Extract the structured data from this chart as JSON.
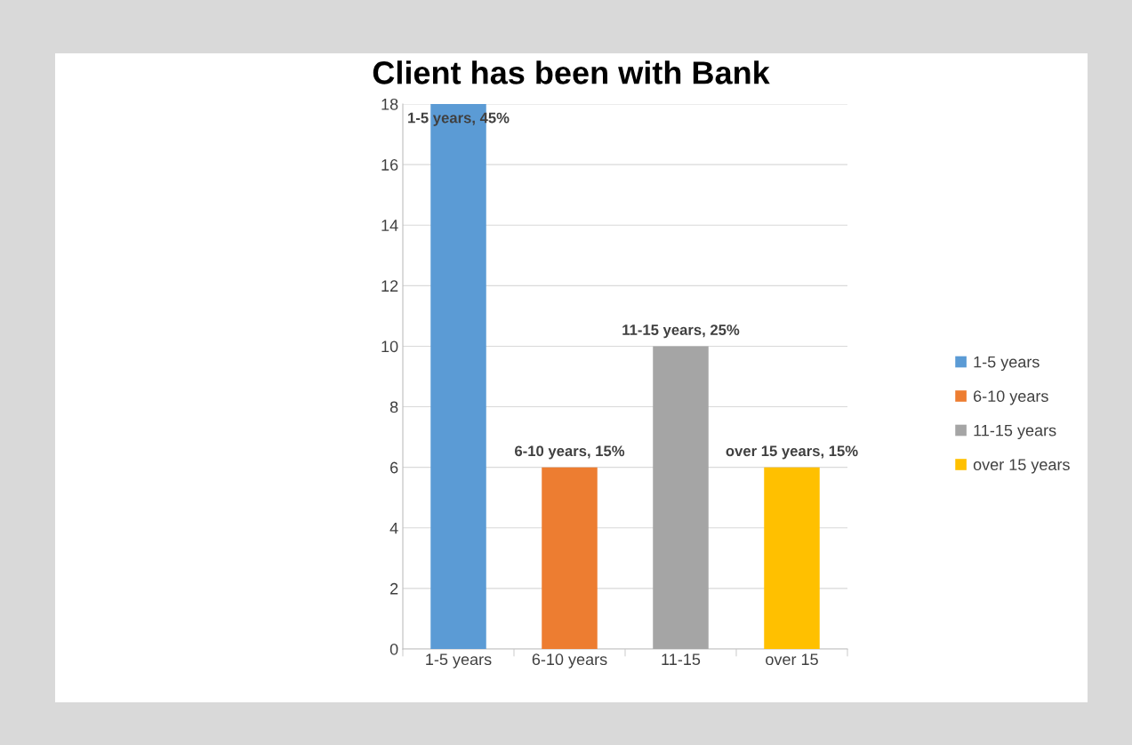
{
  "chart_data": {
    "type": "bar",
    "title": "Client has been with Bank",
    "categories": [
      "1-5 years",
      "6-10 years",
      "11-15",
      "over 15"
    ],
    "series": [
      {
        "name": "1-5 years",
        "color": "#5b9bd5",
        "values": [
          18,
          null,
          null,
          null
        ]
      },
      {
        "name": "6-10 years",
        "color": "#ed7d31",
        "values": [
          null,
          6,
          null,
          null
        ]
      },
      {
        "name": "11-15 years",
        "color": "#a5a5a5",
        "values": [
          null,
          null,
          10,
          null
        ]
      },
      {
        "name": "over 15 years",
        "color": "#ffc000",
        "values": [
          null,
          null,
          null,
          6
        ]
      }
    ],
    "annotations": [
      {
        "text": "1-5 years, 45%",
        "x": "1-5 years",
        "y": 18
      },
      {
        "text": "6-10 years, 15%",
        "x": "6-10 years",
        "y": 6
      },
      {
        "text": "11-15 years, 25%",
        "x": "11-15",
        "y": 10
      },
      {
        "text": "over 15 years, 15%",
        "x": "over 15",
        "y": 6
      }
    ],
    "ylim": [
      0,
      18
    ],
    "yticks": [
      0,
      2,
      4,
      6,
      8,
      10,
      12,
      14,
      16,
      18
    ],
    "grid": "y",
    "legend": "right"
  }
}
